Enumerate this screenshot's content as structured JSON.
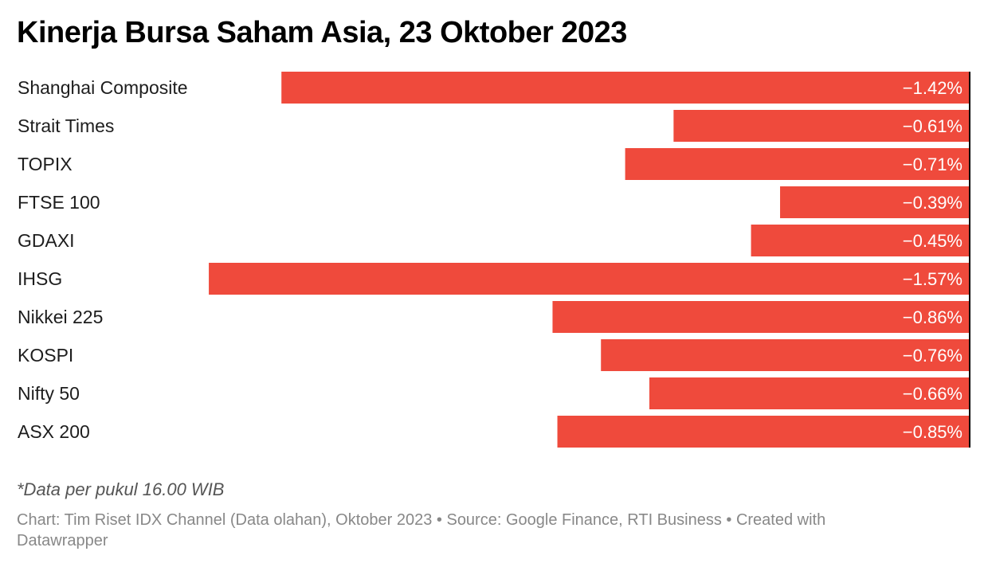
{
  "chart_data": {
    "type": "bar",
    "orientation": "horizontal",
    "title": "Kinerja Bursa Saham Asia, 23 Oktober 2023",
    "categories": [
      "Shanghai Composite",
      "Strait Times",
      "TOPIX",
      "FTSE 100",
      "GDAXI",
      "IHSG",
      "Nikkei 225",
      "KOSPI",
      "Nifty 50",
      "ASX 200"
    ],
    "values": [
      -1.42,
      -0.61,
      -0.71,
      -0.39,
      -0.45,
      -1.57,
      -0.86,
      -0.76,
      -0.66,
      -0.85
    ],
    "value_labels": [
      "−1.42%",
      "−0.61%",
      "−0.71%",
      "−0.39%",
      "−0.45%",
      "−1.57%",
      "−0.86%",
      "−0.76%",
      "−0.66%",
      "−0.85%"
    ],
    "unit": "%",
    "bar_color": "#ef4a3c",
    "axis_color": "#000000",
    "grid": false,
    "legend": "none"
  },
  "notes": {
    "note": "*Data per pukul 16.00 WIB",
    "footer": "Chart: Tim Riset IDX Channel (Data olahan), Oktober 2023 • Source: Google Finance, RTI Business • Created with Datawrapper"
  }
}
